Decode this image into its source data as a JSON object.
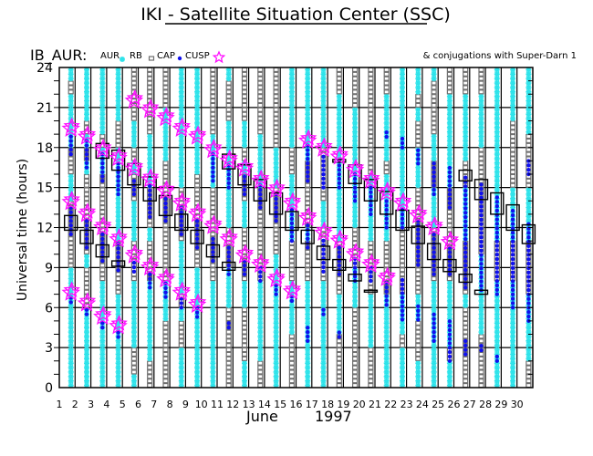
{
  "title": "IKI - Satellite Situation Center (SSC)",
  "chart_id_label": "IB_AUR:",
  "legend": {
    "aur": "AUR",
    "rb": "RB",
    "cap": "CAP",
    "cusp": "CUSP",
    "conjugations": "& conjugations with Super-Darn 1",
    "placement": "top"
  },
  "colors": {
    "aur": "#2ee3ea",
    "rb": "#707070",
    "cap": "#1010ee",
    "cusp": "#ff10ff",
    "conj": "#000000"
  },
  "chart_data": {
    "type": "scatter",
    "title": "IKI - Satellite Situation Center (SSC)",
    "ylabel": "Universal time (hours)",
    "xlabel_month": "June",
    "xlabel_year": "1997",
    "ylim": [
      0,
      24
    ],
    "yticks": [
      0,
      3,
      6,
      9,
      12,
      15,
      18,
      21,
      24
    ],
    "xticks": [
      1,
      2,
      3,
      4,
      5,
      6,
      7,
      8,
      9,
      10,
      11,
      12,
      13,
      14,
      15,
      16,
      17,
      18,
      19,
      20,
      21,
      22,
      23,
      24,
      25,
      26,
      27,
      28,
      29,
      30
    ],
    "grid": true,
    "region_code_note": "regions per hour slot from 0 UT upward: a = AUR, r = RB",
    "columns": [
      {
        "day": 1,
        "regions": "aaaaaaaaarrrrraarraaaara",
        "cap": [
          [
            17.5,
            19
          ],
          [
            11.5,
            13.5
          ],
          [
            6.4,
            6.9
          ]
        ],
        "cusp": [
          19.4,
          13.9,
          7.1
        ],
        "conj": [
          [
            11.8,
            12.9
          ]
        ]
      },
      {
        "day": 2,
        "regions": "aaaaaarrrarrrrrrararaaaa",
        "cap": [
          [
            16.5,
            18.5
          ],
          [
            10.5,
            12.7
          ],
          [
            5.5,
            6
          ]
        ],
        "cusp": [
          18.8,
          13.0,
          6.3
        ],
        "conj": [
          [
            10.8,
            11.8
          ]
        ]
      },
      {
        "day": 3,
        "regions": "aaaaaaaarrrrrrrraaraaaaa",
        "cap": [
          [
            15.5,
            17.5
          ],
          [
            9.5,
            11.8
          ],
          [
            4.5,
            5
          ]
        ],
        "cusp": [
          17.8,
          12.0,
          5.3
        ],
        "conj": [
          [
            17.2,
            18.3
          ],
          [
            9.8,
            10.7
          ]
        ]
      },
      {
        "day": 4,
        "regions": "aaaaaaarrrrараaaaarraaaa",
        "cap": [
          [
            14.5,
            16.9
          ],
          [
            8.8,
            10.8
          ],
          [
            3.8,
            4.2
          ]
        ],
        "cusp": [
          17.2,
          11.1,
          4.6
        ],
        "conj": [
          [
            16.3,
            17.8
          ],
          [
            9.1,
            9.5
          ]
        ]
      },
      {
        "day": 5,
        "regions": "arraaaaarrraaarraraarrrr",
        "cap": [
          [
            14.5,
            15.8
          ],
          [
            8.7,
            9.6
          ]
        ],
        "cusp": [
          21.5,
          16.4,
          9.9
        ],
        "conj": [
          [
            15.2,
            16.8
          ]
        ]
      },
      {
        "day": 6,
        "regions": "rraaaaaarrrarrraaaarrrrr",
        "cap": [
          [
            12.8,
            15.3
          ],
          [
            7.5,
            8.7
          ]
        ],
        "cusp": [
          20.8,
          15.6,
          9.0
        ],
        "conj": [
          [
            14.0,
            15.8
          ]
        ]
      },
      {
        "day": 7,
        "regions": "rrrrraaarrrrrrrrraaaarrr",
        "cap": [
          [
            12.5,
            14.4
          ],
          [
            6.8,
            7.9
          ]
        ],
        "cusp": [
          20.2,
          14.7,
          8.1
        ],
        "conj": [
          [
            12.9,
            14.4
          ]
        ]
      },
      {
        "day": 8,
        "regions": "aaarraraaaarrrraaaaaaaaa",
        "cap": [
          [
            11.5,
            13.5
          ],
          [
            6,
            6.9
          ]
        ],
        "cusp": [
          19.4,
          13.8,
          7.1
        ],
        "conj": [
          [
            11.8,
            13.0
          ]
        ]
      },
      {
        "day": 9,
        "regions": "aaaaaaaaarrrrrrraaaaaaaa",
        "cap": [
          [
            10.5,
            12.7
          ],
          [
            5.3,
            6
          ]
        ],
        "cusp": [
          18.8,
          13.0,
          6.2
        ],
        "conj": [
          [
            10.8,
            11.8
          ]
        ]
      },
      {
        "day": 10,
        "regions": "aaaaaaaarrrrrrraaaarrrrr",
        "cap": [
          [
            15.5,
            17.5
          ],
          [
            9.5,
            11.4
          ]
        ],
        "cusp": [
          17.8,
          12.1
        ],
        "conj": [
          [
            9.8,
            10.7
          ]
        ]
      },
      {
        "day": 11,
        "regions": "rrrrrraaarrraaaaaaaarrra",
        "cap": [
          [
            15,
            16.8
          ],
          [
            8.5,
            10.8
          ],
          [
            4.5,
            5
          ]
        ],
        "cusp": [
          17.0,
          11.1
        ],
        "conj": [
          [
            16.4,
            17.5
          ],
          [
            8.8,
            9.4
          ]
        ]
      },
      {
        "day": 12,
        "regions": "aarrrraarrrraarraraarrrr",
        "cap": [
          [
            14.5,
            16.1
          ],
          [
            8.5,
            9.6
          ]
        ],
        "cusp": [
          16.4,
          9.9
        ],
        "conj": [
          [
            15.2,
            16.7
          ]
        ]
      },
      {
        "day": 13,
        "regions": "rraaaaaarrrrrrraaaarrrrr",
        "cap": [
          [
            13.5,
            15.2
          ],
          [
            8,
            9
          ]
        ],
        "cusp": [
          15.5,
          9.2
        ],
        "conj": [
          [
            14.0,
            15.6
          ]
        ]
      },
      {
        "day": 14,
        "regions": "aaaaaaaaaarrrrraaarrrrrr",
        "cap": [
          [
            12.5,
            14.5
          ],
          [
            7,
            7.9
          ]
        ],
        "cusp": [
          14.8,
          8.1
        ],
        "conj": [
          [
            13.0,
            14.6
          ]
        ]
      },
      {
        "day": 15,
        "regions": "rrrraaaarrraaaaarraaaaaa",
        "cap": [
          [
            11,
            13.5
          ],
          [
            6.5,
            7
          ]
        ],
        "cusp": [
          13.8,
          7.2
        ],
        "conj": [
          [
            11.8,
            13.2
          ]
        ]
      },
      {
        "day": 16,
        "regions": "aaaaaaaarrrarrrrraaaaaaa",
        "cap": [
          [
            15.5,
            18.2
          ],
          [
            10.5,
            12.4
          ],
          [
            3.5,
            4.5
          ]
        ],
        "cusp": [
          18.5,
          12.7
        ],
        "conj": [
          [
            10.8,
            11.8
          ]
        ]
      },
      {
        "day": 17,
        "regions": "aaaaaaaarrrraarrrraaaaaa",
        "cap": [
          [
            15,
            17.6
          ],
          [
            8.7,
            11.3
          ],
          [
            5.5,
            6
          ]
        ],
        "cusp": [
          17.9,
          11.6
        ],
        "conj": [
          [
            9.6,
            10.6
          ]
        ]
      },
      {
        "day": 18,
        "regions": "rrrraaarrrraaaaaaaaaaarr",
        "cap": [
          [
            15,
            17
          ],
          [
            8.5,
            10.7
          ],
          [
            3.8,
            4.2
          ]
        ],
        "cusp": [
          17.3,
          11.0
        ],
        "conj": [
          [
            16.9,
            17.1
          ],
          [
            8.8,
            9.6
          ]
        ]
      },
      {
        "day": 19,
        "regions": "rrrrrraaarrraaaaaaaaarrr",
        "cap": [
          [
            14,
            16
          ],
          [
            8,
            9.7
          ]
        ],
        "cusp": [
          16.3,
          10.0
        ],
        "conj": [
          [
            15.3,
            16.7
          ],
          [
            8.0,
            8.5
          ]
        ]
      },
      {
        "day": 20,
        "regions": "rrraaaarrrraaaaarrrrrrrr",
        "cap": [
          [
            13,
            15.2
          ],
          [
            8,
            9
          ]
        ],
        "cusp": [
          15.5,
          9.2
        ],
        "conj": [
          [
            14.0,
            15.6
          ],
          [
            7.2,
            7.3
          ]
        ]
      },
      {
        "day": 21,
        "regions": "aaaaaaarrrraaaaaraaaaarr",
        "cap": [
          [
            12,
            14.3
          ],
          [
            6.2,
            8
          ],
          [
            18.8,
            19.2
          ]
        ],
        "cusp": [
          14.6,
          8.2
        ],
        "conj": [
          [
            13.0,
            14.7
          ]
        ]
      },
      {
        "day": 22,
        "regions": "aaaraaarrrrraaaaaaaaaaaa",
        "cap": [
          [
            12,
            13.5
          ],
          [
            5.1,
            8.2
          ],
          [
            18,
            18.8
          ]
        ],
        "cusp": [
          13.8
        ],
        "conj": [
          [
            11.8,
            13.3
          ]
        ]
      },
      {
        "day": 23,
        "regions": "aarrraarrrrrrrraaarraraa",
        "cap": [
          [
            9.2,
            12.6
          ],
          [
            16.8,
            18.1
          ],
          [
            5.1,
            6.2
          ]
        ],
        "cusp": [
          12.9
        ],
        "conj": [
          [
            10.8,
            12.1
          ]
        ]
      },
      {
        "day": 24,
        "regions": "aaaaaaaarrrraaarraarrrra",
        "cap": [
          [
            8.5,
            11.7
          ],
          [
            14.5,
            17
          ],
          [
            3.5,
            5.5
          ]
        ],
        "cusp": [
          12.0
        ],
        "conj": [
          [
            9.6,
            10.8
          ]
        ]
      },
      {
        "day": 25,
        "regions": "aaraaaaarrrrrrraaaaaaarr",
        "cap": [
          [
            8.5,
            10.6
          ],
          [
            13.5,
            16.5
          ],
          [
            2,
            5
          ]
        ],
        "cusp": [
          10.9
        ],
        "conj": [
          [
            8.7,
            9.6
          ]
        ]
      },
      {
        "day": 26,
        "regions": "rrrrrrarrrraaaarraaaaarr",
        "cap": [
          [
            7.5,
            16
          ],
          [
            2.5,
            3.5
          ]
        ],
        "cusp": [],
        "conj": [
          [
            15.5,
            16.3
          ],
          [
            7.9,
            8.5
          ]
        ]
      },
      {
        "day": 27,
        "regions": "rrrraaaaaarrrrrrrraaaarr",
        "cap": [
          [
            7.3,
            15.5
          ],
          [
            2.8,
            3.2
          ]
        ],
        "cusp": [],
        "conj": [
          [
            14.1,
            15.6
          ],
          [
            7.0,
            7.3
          ]
        ]
      },
      {
        "day": 28,
        "regions": "aaaaaaaarrraaaaaaaaaaaaa",
        "cap": [
          [
            7,
            14.5
          ],
          [
            2,
            2.4
          ]
        ],
        "cusp": [],
        "conj": [
          [
            13.0,
            14.6
          ]
        ]
      },
      {
        "day": 29,
        "regions": "aaaaaaaarrraaaarrrrraaaa",
        "cap": [
          [
            6,
            13.5
          ]
        ],
        "cusp": [],
        "conj": [
          [
            11.8,
            13.7
          ]
        ]
      },
      {
        "day": 30,
        "regions": "rraaaaarrrraaaarrrraaaaa",
        "cap": [
          [
            5,
            12.5
          ],
          [
            16,
            17
          ]
        ],
        "cusp": [],
        "conj": [
          [
            10.8,
            12.2
          ]
        ]
      }
    ]
  }
}
